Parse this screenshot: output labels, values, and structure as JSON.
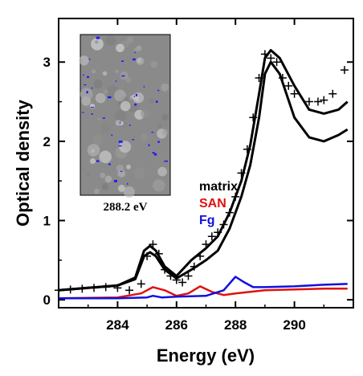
{
  "chart_data": {
    "type": "line",
    "xlabel": "Energy (eV)",
    "ylabel": "Optical density",
    "xlim": [
      282.0,
      292.0
    ],
    "ylim": [
      -0.1,
      3.55
    ],
    "xticks": [
      284,
      286,
      288,
      290
    ],
    "yticks": [
      0,
      1,
      2,
      3
    ],
    "grid": false,
    "legend_position": "center-right",
    "inset": {
      "caption": "288.2 eV",
      "description_colors": {
        "background": "#8a8a8a",
        "highlight": "#1a1aff"
      }
    },
    "colors": {
      "matrix": "#000000",
      "SAN": "#e01010",
      "Fg": "#1010e0"
    },
    "series": [
      {
        "name": "matrix",
        "color": "#000000",
        "x": [
          282.0,
          283.0,
          284.0,
          284.6,
          284.9,
          285.1,
          285.3,
          285.6,
          286.0,
          286.5,
          287.0,
          287.4,
          287.8,
          288.2,
          288.5,
          288.8,
          289.0,
          289.2,
          289.5,
          290.0,
          290.5,
          291.0,
          291.5,
          291.8
        ],
        "y": [
          0.12,
          0.15,
          0.18,
          0.28,
          0.62,
          0.68,
          0.62,
          0.42,
          0.3,
          0.5,
          0.65,
          0.8,
          1.1,
          1.5,
          1.95,
          2.6,
          3.05,
          3.15,
          3.05,
          2.7,
          2.4,
          2.35,
          2.4,
          2.5
        ]
      },
      {
        "name": "SAN",
        "color": "#e01010",
        "x": [
          282.0,
          284.0,
          284.8,
          285.2,
          285.6,
          286.0,
          286.4,
          286.8,
          287.2,
          287.6,
          288.0,
          288.5,
          289.0,
          290.0,
          291.0,
          291.8
        ],
        "y": [
          0.02,
          0.03,
          0.08,
          0.16,
          0.12,
          0.05,
          0.08,
          0.17,
          0.1,
          0.06,
          0.08,
          0.1,
          0.12,
          0.13,
          0.14,
          0.14
        ]
      },
      {
        "name": "Fg",
        "color": "#1010e0",
        "x": [
          282.0,
          284.0,
          285.0,
          285.2,
          285.5,
          286.0,
          287.0,
          287.6,
          288.0,
          288.3,
          288.6,
          289.0,
          290.0,
          291.0,
          291.8
        ],
        "y": [
          0.02,
          0.02,
          0.03,
          0.05,
          0.03,
          0.04,
          0.05,
          0.12,
          0.29,
          0.22,
          0.16,
          0.16,
          0.17,
          0.19,
          0.2
        ]
      },
      {
        "name": "",
        "color": "#000000",
        "x": [
          282.0,
          283.0,
          284.0,
          284.6,
          284.9,
          285.1,
          285.3,
          285.6,
          286.0,
          286.5,
          287.0,
          287.4,
          287.8,
          288.2,
          288.5,
          288.8,
          289.0,
          289.2,
          289.5,
          290.0,
          290.5,
          291.0,
          291.5,
          291.8
        ],
        "y": [
          0.12,
          0.15,
          0.18,
          0.26,
          0.55,
          0.6,
          0.55,
          0.38,
          0.27,
          0.38,
          0.5,
          0.62,
          0.9,
          1.3,
          1.7,
          2.3,
          2.85,
          3.0,
          2.85,
          2.3,
          2.05,
          2.0,
          2.08,
          2.15
        ]
      },
      {
        "name": "",
        "color": "#000000",
        "marker": "plus",
        "x": [
          282.0,
          282.4,
          282.8,
          283.2,
          283.6,
          284.0,
          284.4,
          284.8,
          285.0,
          285.2,
          285.4,
          285.6,
          285.8,
          286.0,
          286.2,
          286.4,
          286.6,
          286.8,
          287.0,
          287.2,
          287.4,
          287.6,
          287.8,
          288.0,
          288.2,
          288.4,
          288.6,
          288.8,
          289.0,
          289.2,
          289.4,
          289.6,
          289.8,
          290.0,
          290.5,
          290.8,
          291.0,
          291.3,
          291.7
        ],
        "y": [
          0.12,
          0.13,
          0.14,
          0.15,
          0.16,
          0.15,
          0.12,
          0.2,
          0.55,
          0.7,
          0.58,
          0.38,
          0.3,
          0.25,
          0.22,
          0.3,
          0.42,
          0.55,
          0.7,
          0.8,
          0.85,
          0.95,
          1.1,
          1.3,
          1.6,
          1.9,
          2.3,
          2.8,
          3.1,
          3.05,
          3.0,
          2.8,
          2.7,
          2.6,
          2.5,
          2.5,
          2.52,
          2.6,
          2.9
        ]
      }
    ]
  }
}
